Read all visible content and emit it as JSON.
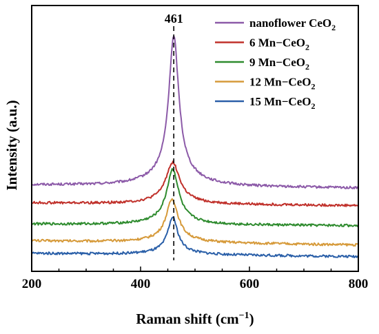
{
  "chart_data": {
    "type": "line",
    "xlabel": "Raman shift (cm",
    "xlabel_sup": "−1",
    "xlabel_close": ")",
    "ylabel": "Intensity (a.u.)",
    "xlim": [
      200,
      800
    ],
    "x_ticks": [
      "200",
      "400",
      "600",
      "800"
    ],
    "y_ticks_shown": false,
    "legend_position": "top-right",
    "annotation": {
      "label": "461",
      "x": 461,
      "style": "dashed vertical line"
    },
    "series": [
      {
        "name": "nanoflower CeO",
        "name_sub": "2",
        "color": "#8c5aa8",
        "baseline": 0.62,
        "trend": -0.12,
        "peak_height": 5.95,
        "peak_center": 461,
        "peak_width": 11
      },
      {
        "name": " 6 Mn−CeO",
        "name_sub": "2",
        "color": "#c0302a",
        "baseline": -0.05,
        "trend": -0.1,
        "peak_height": 1.65,
        "peak_center": 459,
        "peak_width": 15
      },
      {
        "name": "9 Mn−CeO",
        "name_sub": "2",
        "color": "#2e8b2e",
        "baseline": -0.84,
        "trend": -0.06,
        "peak_height": 2.2,
        "peak_center": 459,
        "peak_width": 13
      },
      {
        "name": "12 Mn−CeO",
        "name_sub": "2",
        "color": "#d69a3a",
        "baseline": -1.46,
        "trend": -0.16,
        "peak_height": 1.72,
        "peak_center": 458,
        "peak_width": 13
      },
      {
        "name": "15 Mn−CeO",
        "name_sub": "2",
        "color": "#2a5fa8",
        "baseline": -1.93,
        "trend": -0.12,
        "peak_height": 1.48,
        "peak_center": 459,
        "peak_width": 11
      }
    ]
  }
}
